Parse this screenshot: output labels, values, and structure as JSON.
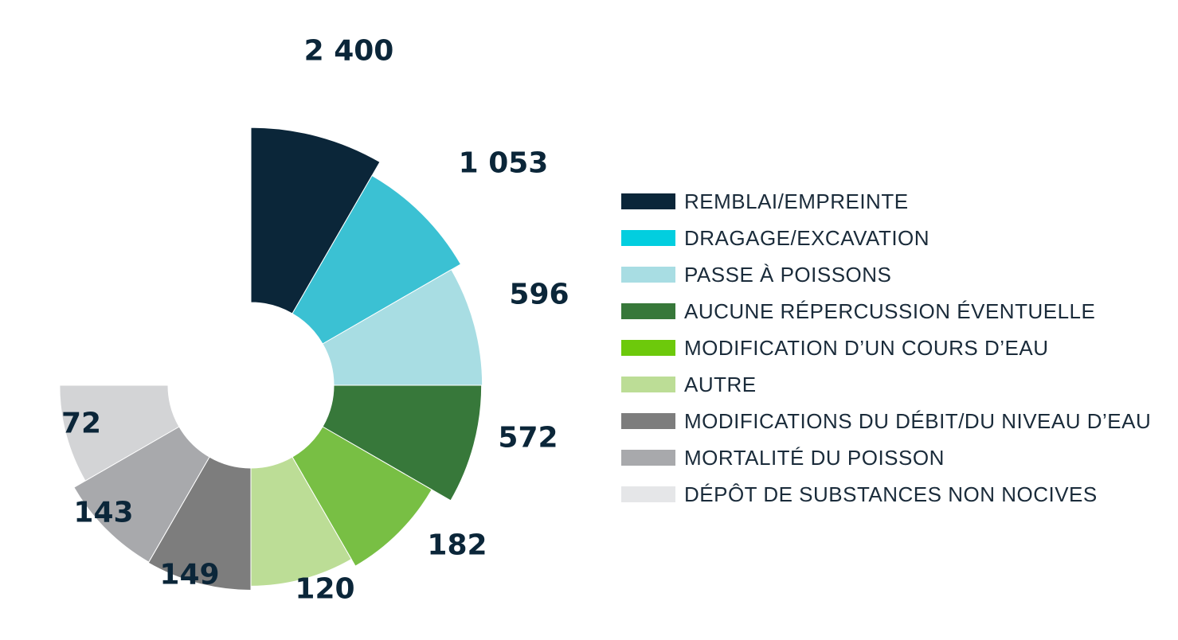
{
  "chart_data": {
    "type": "polar-bar",
    "series": [
      {
        "label": "REMBLAI/EMPREINTE",
        "value": 2400,
        "value_label": "2 400",
        "color": "#0b2639"
      },
      {
        "label": "DRAGAGE/EXCAVATION",
        "value": 1053,
        "value_label": "1 053",
        "color": "#3bc1d3"
      },
      {
        "label": "PASSE À POISSONS",
        "value": 596,
        "value_label": "596",
        "color": "#a8dde3"
      },
      {
        "label": "AUCUNE RÉPERCUSSION ÉVENTUELLE",
        "value": 572,
        "value_label": "572",
        "color": "#37783a"
      },
      {
        "label": "MODIFICATION D’UN COURS D’EAU",
        "value": 182,
        "value_label": "182",
        "color": "#78bf44"
      },
      {
        "label": "AUTRE",
        "value": 120,
        "value_label": "120",
        "color": "#bcdd96"
      },
      {
        "label": "MODIFICATIONS DU DÉBIT/DU NIVEAU D’EAU",
        "value": 149,
        "value_label": "149",
        "color": "#7d7d7d"
      },
      {
        "label": "MORTALITÉ DU POISSON",
        "value": 143,
        "value_label": "143",
        "color": "#a8a9ac"
      },
      {
        "label": "DÉPÔT DE SUBSTANCES NON NOCIVES",
        "value": 72,
        "value_label": "72",
        "color": "#d3d4d6"
      }
    ],
    "legend": {
      "position": "right",
      "items": [
        {
          "label": "REMBLAI/EMPREINTE",
          "color": "#0b2639"
        },
        {
          "label": "DRAGAGE/EXCAVATION",
          "color": "#02cedf"
        },
        {
          "label": "PASSE À POISSONS",
          "color": "#a8dde3"
        },
        {
          "label": "AUCUNE RÉPERCUSSION ÉVENTUELLE",
          "color": "#37783a"
        },
        {
          "label": "MODIFICATION D’UN COURS D’EAU",
          "color": "#6dc90b"
        },
        {
          "label": "AUTRE",
          "color": "#bcdd96"
        },
        {
          "label": "MODIFICATIONS DU DÉBIT/DU NIVEAU D’EAU",
          "color": "#7d7d7d"
        },
        {
          "label": "MORTALITÉ DU POISSON",
          "color": "#a8a9ac"
        },
        {
          "label": "DÉPÔT DE SUBSTANCES NON NOCIVES",
          "color": "#e5e6e8"
        }
      ]
    }
  }
}
